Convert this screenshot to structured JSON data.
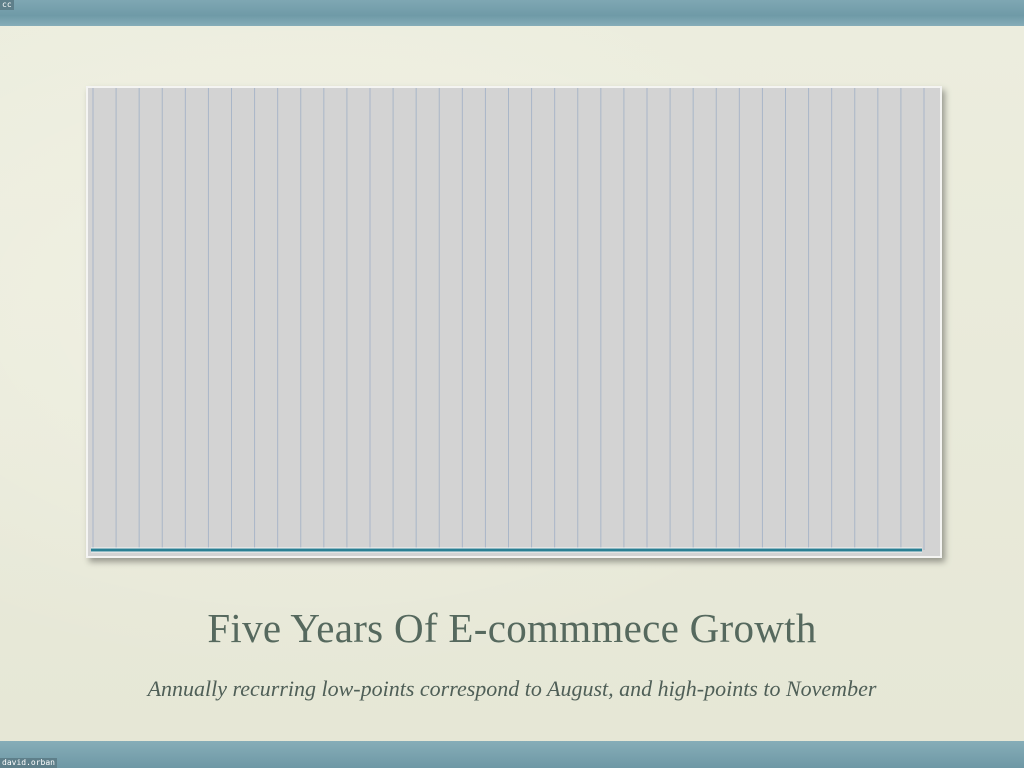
{
  "slide": {
    "corner_top_left": "cc",
    "corner_bottom_left": "david.orban",
    "title": "Five Years Of E-commmece Growth",
    "subtitle": "Annually recurring low-points correspond to August, and high-points to November"
  },
  "colors": {
    "plot_background": "#d3d3d3",
    "gridline": "#a9b6c8",
    "series_blue": "#5b86c2",
    "series_red": "#b0353b",
    "series_green": "#3f9e3f",
    "series_teal": "#2a7f93"
  },
  "chart_data": {
    "type": "line",
    "grid": "vertical lines only",
    "axes_visible": false,
    "ylim": [
      0,
      100
    ],
    "x": [
      1,
      2,
      3,
      4,
      5,
      6,
      7,
      8,
      9,
      10,
      11,
      12,
      13,
      14,
      15,
      16,
      17,
      18,
      19,
      20,
      21,
      22,
      23,
      24,
      25,
      26,
      27,
      28,
      29,
      30,
      31,
      32,
      33,
      34,
      35,
      36,
      37,
      38,
      39,
      40,
      41,
      42,
      43,
      44,
      45,
      46,
      47,
      48,
      49,
      50,
      51,
      52,
      53,
      54,
      55,
      56,
      57,
      58,
      59,
      60,
      61,
      62,
      63,
      64,
      65,
      66,
      67,
      68,
      69,
      70
    ],
    "series": [
      {
        "color": "#5b86c2",
        "values": [
          0,
          0,
          0,
          0,
          0,
          0,
          0,
          0,
          0,
          0,
          0,
          0,
          0,
          0,
          0,
          0,
          0,
          0,
          0,
          0,
          0,
          0,
          0,
          0,
          0,
          0,
          0,
          0,
          0,
          0,
          0,
          0,
          0,
          0,
          0,
          0,
          0,
          0,
          0,
          0,
          0,
          0,
          0,
          0,
          0,
          0,
          0,
          0,
          0,
          0,
          0,
          0,
          0,
          0,
          0,
          0,
          0,
          0,
          0,
          0,
          0,
          0,
          0,
          0,
          0,
          0,
          0,
          0,
          0,
          0
        ]
      },
      {
        "color": "#b0353b",
        "values": [
          0,
          0,
          0,
          0,
          0,
          0,
          0,
          0,
          0,
          0,
          0,
          0,
          0,
          0,
          0,
          0,
          0,
          0,
          0,
          0,
          0,
          0,
          0,
          0,
          0,
          0,
          0,
          0,
          0,
          0,
          0,
          0,
          0,
          0,
          0,
          0,
          0,
          0,
          0,
          0,
          0,
          0,
          0,
          0,
          0,
          0,
          0,
          0,
          0,
          0,
          0,
          0,
          0,
          0,
          0,
          0,
          0,
          0,
          0,
          0,
          0,
          0,
          0,
          0,
          0,
          0,
          0,
          0,
          0,
          0
        ]
      },
      {
        "color": "#3f9e3f",
        "values": [
          0,
          0,
          0,
          0,
          0,
          0,
          0,
          0,
          0,
          0,
          0,
          0,
          0,
          0,
          0,
          0,
          0,
          0,
          0,
          0,
          0,
          0,
          0,
          0,
          0,
          0,
          0,
          0,
          0,
          0,
          0,
          0,
          0,
          0,
          0,
          0,
          0,
          0,
          0,
          0,
          0,
          0,
          0,
          0,
          0,
          0,
          0,
          0,
          0,
          0,
          0,
          0,
          0,
          0,
          0,
          0,
          0,
          0,
          0,
          0,
          0,
          0,
          0,
          0,
          0,
          0,
          0,
          0,
          0,
          0
        ]
      },
      {
        "color": "#2a7f93",
        "values": [
          0,
          0,
          0,
          0,
          0,
          0,
          0,
          0,
          0,
          0,
          0,
          0,
          0,
          0,
          0,
          0,
          0,
          0,
          0,
          0,
          0,
          0,
          0,
          0,
          0,
          0,
          0,
          0,
          0,
          0,
          0,
          0,
          0,
          0,
          0,
          0,
          0,
          0,
          0,
          0,
          0,
          0,
          0,
          0,
          0,
          0,
          0,
          0,
          0,
          0,
          0,
          0,
          0,
          0,
          0,
          0,
          0,
          0,
          0,
          0,
          0,
          0,
          0,
          0,
          0,
          0,
          0,
          0,
          0,
          0
        ]
      }
    ]
  }
}
